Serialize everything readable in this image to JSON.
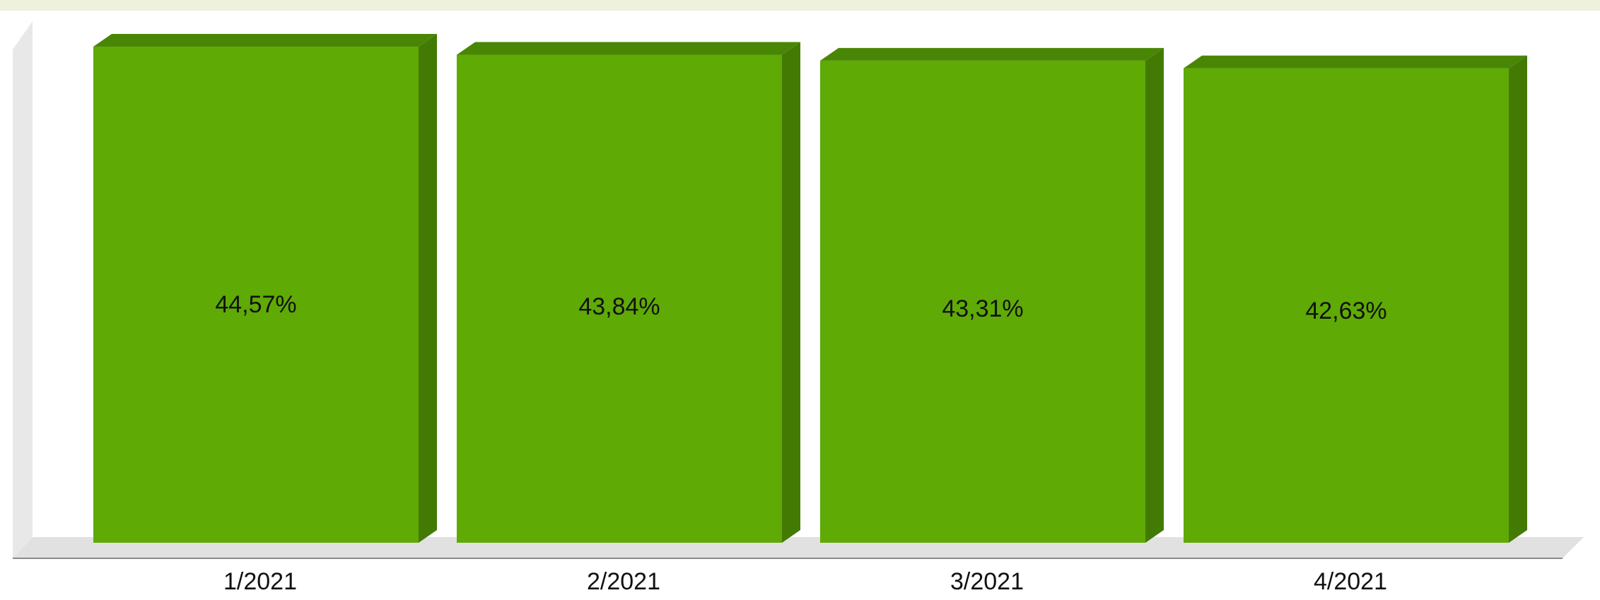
{
  "chart_data": {
    "type": "bar",
    "title": "",
    "xlabel": "",
    "ylabel": "",
    "categories": [
      "1/2021",
      "2/2021",
      "3/2021",
      "4/2021"
    ],
    "values": [
      44.57,
      43.84,
      43.31,
      42.63
    ],
    "value_labels": [
      "44,57%",
      "43,84%",
      "43,31%",
      "42,63%"
    ],
    "ylim": [
      0,
      48
    ],
    "grid": false,
    "legend": "none",
    "style": "3d",
    "colors": {
      "bar_front": "#5faa05",
      "bar_side": "#437a04",
      "bar_top": "#4a8605",
      "header_band": "#eef1dc",
      "floor": "#e3e3e3",
      "wall": "#e6e6e6"
    }
  }
}
